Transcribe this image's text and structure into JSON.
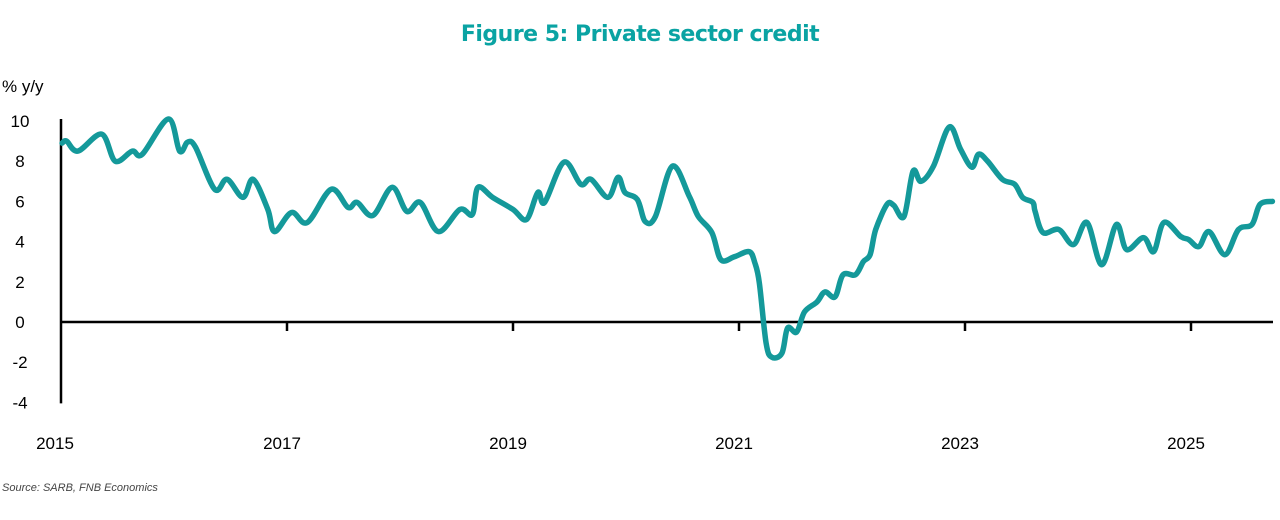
{
  "chart_data": {
    "type": "line",
    "title": "Figure 5: Private sector credit",
    "ylabel": "% y/y",
    "xlabel": "",
    "source": "Source: SARB, FNB Economics",
    "ylim": [
      -4,
      10
    ],
    "xlim": [
      2015,
      2025.75
    ],
    "yticks": [
      10,
      8,
      6,
      4,
      2,
      0,
      -2,
      -4
    ],
    "ytick_labels": [
      "10",
      "8",
      "6",
      "4",
      "2",
      "0",
      "-2",
      "-4"
    ],
    "xticks": [
      2015,
      2017,
      2019,
      2021,
      2023,
      2025
    ],
    "xtick_labels": [
      "2015",
      "2017",
      "2019",
      "2021",
      "2023",
      "2025"
    ],
    "grid": false,
    "legend": "none",
    "line_color": "#14999a",
    "title_color": "#0aa3a3",
    "series": [
      {
        "name": "Private sector credit",
        "x": [
          2015.01,
          2015.05,
          2015.15,
          2015.36,
          2015.48,
          2015.63,
          2015.72,
          2015.95,
          2016.05,
          2016.12,
          2016.19,
          2016.36,
          2016.47,
          2016.61,
          2016.7,
          2016.83,
          2016.89,
          2017.04,
          2017.18,
          2017.39,
          2017.54,
          2017.62,
          2017.76,
          2017.93,
          2018.06,
          2018.18,
          2018.34,
          2018.53,
          2018.64,
          2018.69,
          2018.82,
          2019.0,
          2019.12,
          2019.22,
          2019.28,
          2019.45,
          2019.6,
          2019.69,
          2019.84,
          2019.93,
          2019.99,
          2020.1,
          2020.17,
          2020.26,
          2020.41,
          2020.56,
          2020.64,
          2020.76,
          2020.84,
          2020.96,
          2021.09,
          2021.14,
          2021.18,
          2021.24,
          2021.29,
          2021.38,
          2021.43,
          2021.51,
          2021.58,
          2021.69,
          2021.76,
          2021.85,
          2021.92,
          2022.03,
          2022.1,
          2022.16,
          2022.21,
          2022.31,
          2022.37,
          2022.46,
          2022.54,
          2022.61,
          2022.72,
          2022.86,
          2022.96,
          2023.06,
          2023.12,
          2023.2,
          2023.33,
          2023.44,
          2023.51,
          2023.6,
          2023.62,
          2023.69,
          2023.83,
          2023.96,
          2024.08,
          2024.21,
          2024.34,
          2024.43,
          2024.58,
          2024.67,
          2024.76,
          2024.91,
          2024.98,
          2025.07,
          2025.16,
          2025.3,
          2025.42,
          2025.54,
          2025.61,
          2025.72
        ],
        "y": [
          8.9,
          9.0,
          8.5,
          9.35,
          8.0,
          8.5,
          8.35,
          10.1,
          8.5,
          8.95,
          8.7,
          6.6,
          7.1,
          6.2,
          7.1,
          5.6,
          4.5,
          5.45,
          4.95,
          6.6,
          5.7,
          5.95,
          5.3,
          6.7,
          5.5,
          5.95,
          4.5,
          5.6,
          5.35,
          6.7,
          6.2,
          5.6,
          5.1,
          6.45,
          5.95,
          7.95,
          6.85,
          7.1,
          6.2,
          7.2,
          6.45,
          6.1,
          5.0,
          5.25,
          7.75,
          6.25,
          5.25,
          4.45,
          3.1,
          3.25,
          3.5,
          2.95,
          1.95,
          -1.05,
          -1.75,
          -1.55,
          -0.3,
          -0.5,
          0.5,
          1.0,
          1.5,
          1.25,
          2.35,
          2.35,
          3.0,
          3.35,
          4.6,
          5.85,
          5.8,
          5.25,
          7.5,
          7.0,
          7.75,
          9.7,
          8.6,
          7.7,
          8.35,
          8.0,
          7.1,
          6.85,
          6.2,
          5.95,
          5.5,
          4.45,
          4.6,
          3.85,
          4.95,
          2.85,
          4.85,
          3.6,
          4.2,
          3.5,
          4.95,
          4.25,
          4.1,
          3.75,
          4.5,
          3.35,
          4.6,
          4.85,
          5.85,
          6.0
        ]
      }
    ]
  }
}
